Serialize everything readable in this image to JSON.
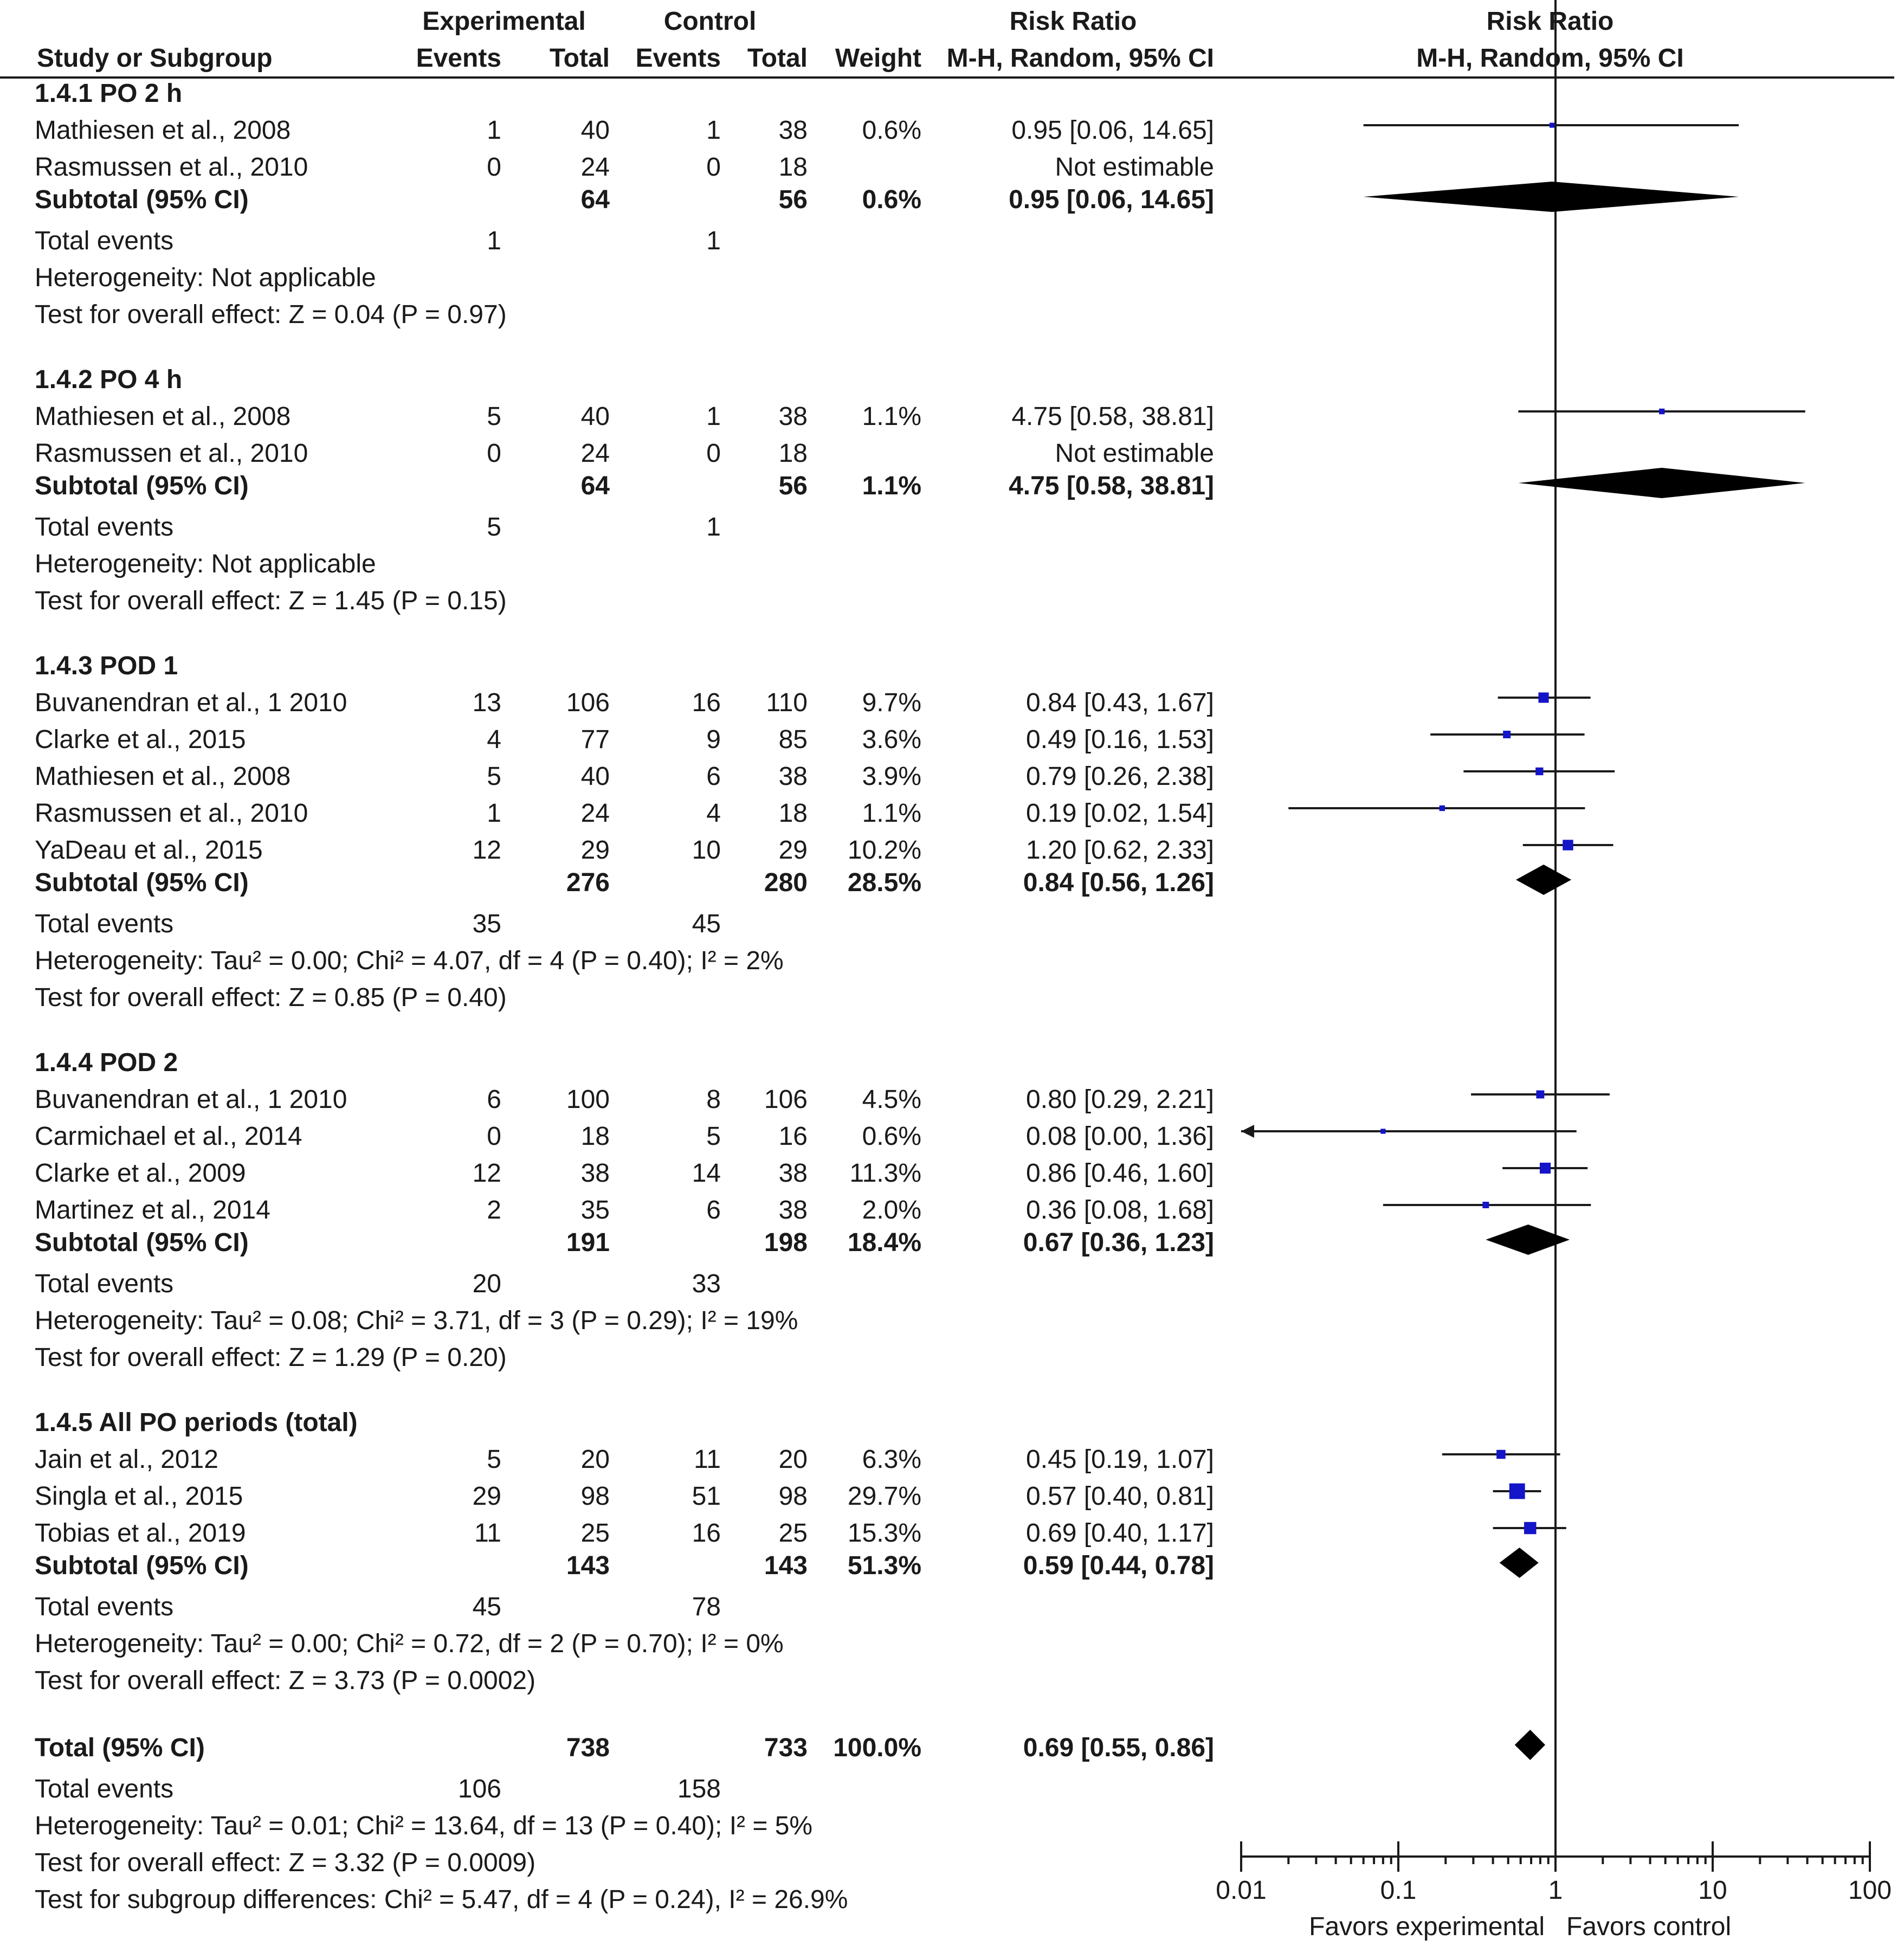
{
  "header": {
    "study": "Study or Subgroup",
    "exp_group": "Experimental",
    "ctrl_group": "Control",
    "events": "Events",
    "total": "Total",
    "weight": "Weight",
    "rr": "Risk Ratio",
    "method": "M-H, Random, 95% CI",
    "plot_rr": "Risk Ratio",
    "plot_method": "M-H, Random, 95% CI"
  },
  "rows": [
    {
      "type": "subgroup",
      "label": "1.4.1 PO 2 h"
    },
    {
      "type": "study",
      "name": "Mathiesen et al., 2008",
      "ee": "1",
      "et": "40",
      "ce": "1",
      "ct": "38",
      "w": "0.6%",
      "ci": "0.95 [0.06, 14.65]"
    },
    {
      "type": "study",
      "name": "Rasmussen et al., 2010",
      "ee": "0",
      "et": "24",
      "ce": "0",
      "ct": "18",
      "w": "",
      "ci": "Not estimable"
    },
    {
      "type": "subtotal",
      "name": "Subtotal (95% CI)",
      "et": "64",
      "ct": "56",
      "w": "0.6%",
      "ci": "0.95 [0.06, 14.65]"
    },
    {
      "type": "events",
      "name": "Total events",
      "ee": "1",
      "ce": "1"
    },
    {
      "type": "text",
      "name": "Heterogeneity: Not applicable"
    },
    {
      "type": "text",
      "name": "Test for overall effect: Z = 0.04 (P = 0.97)"
    },
    {
      "type": "subgroup",
      "label": "1.4.2 PO 4 h"
    },
    {
      "type": "study",
      "name": "Mathiesen et al., 2008",
      "ee": "5",
      "et": "40",
      "ce": "1",
      "ct": "38",
      "w": "1.1%",
      "ci": "4.75 [0.58, 38.81]"
    },
    {
      "type": "study",
      "name": "Rasmussen et al., 2010",
      "ee": "0",
      "et": "24",
      "ce": "0",
      "ct": "18",
      "w": "",
      "ci": "Not estimable"
    },
    {
      "type": "subtotal",
      "name": "Subtotal (95% CI)",
      "et": "64",
      "ct": "56",
      "w": "1.1%",
      "ci": "4.75 [0.58, 38.81]"
    },
    {
      "type": "events",
      "name": "Total events",
      "ee": "5",
      "ce": "1"
    },
    {
      "type": "text",
      "name": "Heterogeneity: Not applicable"
    },
    {
      "type": "text",
      "name": "Test for overall effect: Z = 1.45 (P = 0.15)"
    },
    {
      "type": "subgroup",
      "label": "1.4.3 POD 1"
    },
    {
      "type": "study",
      "name": "Buvanendran et al., 1 2010",
      "ee": "13",
      "et": "106",
      "ce": "16",
      "ct": "110",
      "w": "9.7%",
      "ci": "0.84 [0.43, 1.67]"
    },
    {
      "type": "study",
      "name": "Clarke et al., 2015",
      "ee": "4",
      "et": "77",
      "ce": "9",
      "ct": "85",
      "w": "3.6%",
      "ci": "0.49 [0.16, 1.53]"
    },
    {
      "type": "study",
      "name": "Mathiesen et al., 2008",
      "ee": "5",
      "et": "40",
      "ce": "6",
      "ct": "38",
      "w": "3.9%",
      "ci": "0.79 [0.26, 2.38]"
    },
    {
      "type": "study",
      "name": "Rasmussen et al., 2010",
      "ee": "1",
      "et": "24",
      "ce": "4",
      "ct": "18",
      "w": "1.1%",
      "ci": "0.19 [0.02, 1.54]"
    },
    {
      "type": "study",
      "name": "YaDeau et al., 2015",
      "ee": "12",
      "et": "29",
      "ce": "10",
      "ct": "29",
      "w": "10.2%",
      "ci": "1.20 [0.62, 2.33]"
    },
    {
      "type": "subtotal",
      "name": "Subtotal (95% CI)",
      "et": "276",
      "ct": "280",
      "w": "28.5%",
      "ci": "0.84 [0.56, 1.26]"
    },
    {
      "type": "events",
      "name": "Total events",
      "ee": "35",
      "ce": "45"
    },
    {
      "type": "text",
      "name": "Heterogeneity: Tau² = 0.00; Chi² = 4.07, df = 4 (P = 0.40); I² = 2%"
    },
    {
      "type": "text",
      "name": "Test for overall effect: Z = 0.85 (P = 0.40)"
    },
    {
      "type": "subgroup",
      "label": "1.4.4 POD 2"
    },
    {
      "type": "study",
      "name": "Buvanendran et al., 1 2010",
      "ee": "6",
      "et": "100",
      "ce": "8",
      "ct": "106",
      "w": "4.5%",
      "ci": "0.80 [0.29, 2.21]"
    },
    {
      "type": "study",
      "name": "Carmichael et al., 2014",
      "ee": "0",
      "et": "18",
      "ce": "5",
      "ct": "16",
      "w": "0.6%",
      "ci": "0.08 [0.00, 1.36]"
    },
    {
      "type": "study",
      "name": "Clarke et al., 2009",
      "ee": "12",
      "et": "38",
      "ce": "14",
      "ct": "38",
      "w": "11.3%",
      "ci": "0.86 [0.46, 1.60]"
    },
    {
      "type": "study",
      "name": "Martinez et al., 2014",
      "ee": "2",
      "et": "35",
      "ce": "6",
      "ct": "38",
      "w": "2.0%",
      "ci": "0.36 [0.08, 1.68]"
    },
    {
      "type": "subtotal",
      "name": "Subtotal (95% CI)",
      "et": "191",
      "ct": "198",
      "w": "18.4%",
      "ci": "0.67 [0.36, 1.23]"
    },
    {
      "type": "events",
      "name": "Total events",
      "ee": "20",
      "ce": "33"
    },
    {
      "type": "text",
      "name": "Heterogeneity: Tau² = 0.08; Chi² = 3.71, df = 3 (P = 0.29); I² = 19%"
    },
    {
      "type": "text",
      "name": "Test for overall effect: Z = 1.29 (P = 0.20)"
    },
    {
      "type": "subgroup",
      "label": "1.4.5 All PO periods (total)"
    },
    {
      "type": "study",
      "name": "Jain et al., 2012",
      "ee": "5",
      "et": "20",
      "ce": "11",
      "ct": "20",
      "w": "6.3%",
      "ci": "0.45 [0.19, 1.07]"
    },
    {
      "type": "study",
      "name": "Singla et al., 2015",
      "ee": "29",
      "et": "98",
      "ce": "51",
      "ct": "98",
      "w": "29.7%",
      "ci": "0.57 [0.40, 0.81]"
    },
    {
      "type": "study",
      "name": "Tobias et al., 2019",
      "ee": "11",
      "et": "25",
      "ce": "16",
      "ct": "25",
      "w": "15.3%",
      "ci": "0.69 [0.40, 1.17]"
    },
    {
      "type": "subtotal",
      "name": "Subtotal (95% CI)",
      "et": "143",
      "ct": "143",
      "w": "51.3%",
      "ci": "0.59 [0.44, 0.78]"
    },
    {
      "type": "events",
      "name": "Total events",
      "ee": "45",
      "ce": "78"
    },
    {
      "type": "text",
      "name": "Heterogeneity: Tau² = 0.00; Chi² = 0.72, df = 2 (P = 0.70); I² = 0%"
    },
    {
      "type": "text",
      "name": "Test for overall effect: Z = 3.73 (P = 0.0002)"
    },
    {
      "type": "subtotal",
      "name": "Total (95% CI)",
      "et": "738",
      "ct": "733",
      "w": "100.0%",
      "ci": "0.69 [0.55, 0.86]"
    },
    {
      "type": "events",
      "name": "Total events",
      "ee": "106",
      "ce": "158"
    },
    {
      "type": "text",
      "name": "Heterogeneity: Tau² = 0.01; Chi² = 13.64, df = 13 (P = 0.40); I² = 5%"
    },
    {
      "type": "text",
      "name": "Test for overall effect: Z = 3.32 (P = 0.0009)"
    },
    {
      "type": "text",
      "name": "Test for subgroup differences: Chi² = 5.47, df = 4 (P = 0.24), I² = 26.9%"
    }
  ],
  "chart_data": {
    "type": "forest",
    "title": "Risk Ratio",
    "subtitle": "M-H, Random, 95% CI",
    "xscale": "log",
    "xlim": [
      0.01,
      100
    ],
    "ticks": [
      0.01,
      0.1,
      1,
      10,
      100
    ],
    "tick_labels": [
      "0.01",
      "0.1",
      "1",
      "10",
      "100"
    ],
    "label_left": "Favors experimental",
    "label_right": "Favors control",
    "reference_line": 1,
    "studies": [
      {
        "name": "Mathiesen et al., 2008 (PO 2 h)",
        "rr": 0.95,
        "lo": 0.06,
        "hi": 14.65,
        "weight": 0.6
      },
      {
        "name": "Mathiesen et al., 2008 (PO 4 h)",
        "rr": 4.75,
        "lo": 0.58,
        "hi": 38.81,
        "weight": 1.1
      },
      {
        "name": "Buvanendran et al., 1 2010 (POD 1)",
        "rr": 0.84,
        "lo": 0.43,
        "hi": 1.67,
        "weight": 9.7
      },
      {
        "name": "Clarke et al., 2015",
        "rr": 0.49,
        "lo": 0.16,
        "hi": 1.53,
        "weight": 3.6
      },
      {
        "name": "Mathiesen et al., 2008 (POD 1)",
        "rr": 0.79,
        "lo": 0.26,
        "hi": 2.38,
        "weight": 3.9
      },
      {
        "name": "Rasmussen et al., 2010 (POD 1)",
        "rr": 0.19,
        "lo": 0.02,
        "hi": 1.54,
        "weight": 1.1
      },
      {
        "name": "YaDeau et al., 2015",
        "rr": 1.2,
        "lo": 0.62,
        "hi": 2.33,
        "weight": 10.2
      },
      {
        "name": "Buvanendran et al., 1 2010 (POD 2)",
        "rr": 0.8,
        "lo": 0.29,
        "hi": 2.21,
        "weight": 4.5
      },
      {
        "name": "Carmichael et al., 2014",
        "rr": 0.08,
        "lo": 0.0,
        "hi": 1.36,
        "weight": 0.6
      },
      {
        "name": "Clarke et al., 2009",
        "rr": 0.86,
        "lo": 0.46,
        "hi": 1.6,
        "weight": 11.3
      },
      {
        "name": "Martinez et al., 2014",
        "rr": 0.36,
        "lo": 0.08,
        "hi": 1.68,
        "weight": 2.0
      },
      {
        "name": "Jain et al., 2012",
        "rr": 0.45,
        "lo": 0.19,
        "hi": 1.07,
        "weight": 6.3
      },
      {
        "name": "Singla et al., 2015",
        "rr": 0.57,
        "lo": 0.4,
        "hi": 0.81,
        "weight": 29.7
      },
      {
        "name": "Tobias et al., 2019",
        "rr": 0.69,
        "lo": 0.4,
        "hi": 1.17,
        "weight": 15.3
      }
    ],
    "subtotals": [
      {
        "name": "1.4.1 PO 2 h",
        "rr": 0.95,
        "lo": 0.06,
        "hi": 14.65
      },
      {
        "name": "1.4.2 PO 4 h",
        "rr": 4.75,
        "lo": 0.58,
        "hi": 38.81
      },
      {
        "name": "1.4.3 POD 1",
        "rr": 0.84,
        "lo": 0.56,
        "hi": 1.26
      },
      {
        "name": "1.4.4 POD 2",
        "rr": 0.67,
        "lo": 0.36,
        "hi": 1.23
      },
      {
        "name": "1.4.5 All PO periods (total)",
        "rr": 0.59,
        "lo": 0.44,
        "hi": 0.78
      },
      {
        "name": "Total (95% CI)",
        "rr": 0.69,
        "lo": 0.55,
        "hi": 0.86
      }
    ]
  }
}
